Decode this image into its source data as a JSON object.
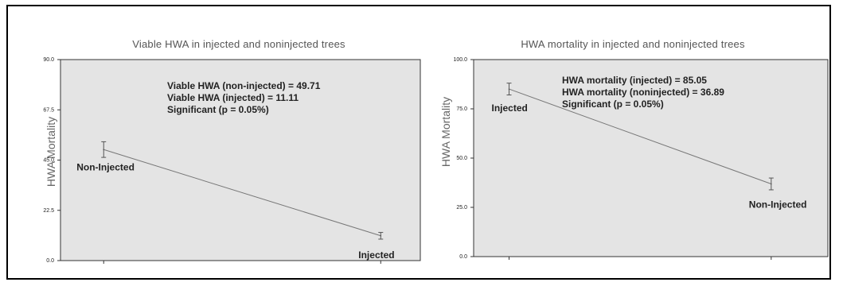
{
  "chart_data": [
    {
      "type": "line",
      "title": "Viable HWA in injected and noninjected trees",
      "ylabel": "HWA Mortality",
      "xlabel": "",
      "categories": [
        "Non-Injected",
        "Injected"
      ],
      "series": [
        {
          "values": [
            49.71,
            11.11
          ],
          "error": [
            3.5,
            1.5
          ]
        }
      ],
      "ylim": [
        0.0,
        90.0
      ],
      "yticks": [
        0.0,
        22.5,
        45.0,
        67.5,
        90.0
      ],
      "ytick_labels": [
        "0.0",
        "22.5",
        "45.0",
        "67.5",
        "90.0"
      ],
      "grid": false,
      "annotations": [
        "Viable HWA (non-injected)  = 49.71",
        "Viable HWA (injected) = 11.11",
        "Significant (p = 0.05%)"
      ]
    },
    {
      "type": "line",
      "title": "HWA mortality in injected and noninjected trees",
      "ylabel": "HWA Mortality",
      "xlabel": "",
      "categories": [
        "Injected",
        "Non-Injected"
      ],
      "series": [
        {
          "values": [
            85.05,
            36.89
          ],
          "error": [
            3.0,
            3.0
          ]
        }
      ],
      "ylim": [
        0.0,
        100.0
      ],
      "yticks": [
        0.0,
        25.0,
        50.0,
        75.0,
        100.0
      ],
      "ytick_labels": [
        "0.0",
        "25.0",
        "50.0",
        "75.0",
        "100.0"
      ],
      "grid": false,
      "annotations": [
        "HWA mortality (injected) = 85.05",
        "HWA mortality (noninjected) = 36.89",
        "Significant (p = 0.05%)"
      ]
    }
  ],
  "colors": {
    "plot_background": "#e4e4e4",
    "line": "#777777",
    "text": "#222222"
  }
}
